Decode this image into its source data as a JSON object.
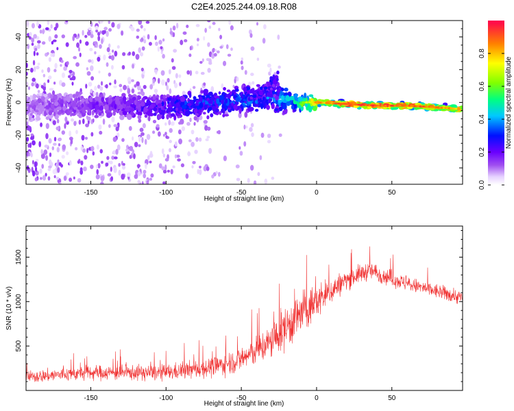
{
  "title": "C2E4.2025.244.09.18.R08",
  "chart_data": [
    {
      "type": "heatmap",
      "xlabel": "Height of straight line (km)",
      "ylabel": "Frequency (Hz)",
      "xlim": [
        -193,
        97
      ],
      "ylim": [
        -50,
        50
      ],
      "x_ticks": [
        -150,
        -100,
        -50,
        0,
        50
      ],
      "y_ticks": [
        -40,
        -20,
        0,
        20,
        40
      ],
      "colorbar": {
        "label": "Normalized spectral amplitude",
        "range": [
          0,
          1
        ],
        "ticks": [
          0.0,
          0.2,
          0.4,
          0.6,
          0.8
        ]
      },
      "ridge": [
        {
          "x": -190,
          "y": -3,
          "amp": 0.12
        },
        {
          "x": -170,
          "y": -2,
          "amp": 0.15
        },
        {
          "x": -150,
          "y": -2,
          "amp": 0.18
        },
        {
          "x": -130,
          "y": -2,
          "amp": 0.2
        },
        {
          "x": -110,
          "y": -3,
          "amp": 0.25
        },
        {
          "x": -95,
          "y": -2,
          "amp": 0.3
        },
        {
          "x": -80,
          "y": -1,
          "amp": 0.32
        },
        {
          "x": -60,
          "y": 0,
          "amp": 0.34
        },
        {
          "x": -45,
          "y": 2,
          "amp": 0.36
        },
        {
          "x": -30,
          "y": 3,
          "amp": 0.38
        },
        {
          "x": -20,
          "y": 2,
          "amp": 0.4
        },
        {
          "x": -10,
          "y": 0,
          "amp": 0.6
        },
        {
          "x": 0,
          "y": 0,
          "amp": 0.85
        },
        {
          "x": 20,
          "y": -1,
          "amp": 0.95
        },
        {
          "x": 40,
          "y": -2,
          "amp": 0.97
        },
        {
          "x": 60,
          "y": -2,
          "amp": 0.95
        },
        {
          "x": 80,
          "y": -3,
          "amp": 0.9
        },
        {
          "x": 95,
          "y": -4,
          "amp": 0.85
        }
      ]
    },
    {
      "type": "line",
      "xlabel": "Height of straight line (km)",
      "ylabel": "SNR (10 * v/v)",
      "xlim": [
        -193,
        97
      ],
      "ylim": [
        0,
        1850
      ],
      "x_ticks": [
        -150,
        -100,
        -50,
        0,
        50
      ],
      "y_ticks": [
        500,
        1000,
        1500
      ],
      "color": "#f03232",
      "envelope": [
        {
          "x": -193,
          "mean": 150,
          "spread": 120
        },
        {
          "x": -150,
          "mean": 200,
          "spread": 150
        },
        {
          "x": -100,
          "mean": 200,
          "spread": 160
        },
        {
          "x": -70,
          "mean": 260,
          "spread": 200
        },
        {
          "x": -50,
          "mean": 350,
          "spread": 250
        },
        {
          "x": -30,
          "mean": 550,
          "spread": 350
        },
        {
          "x": -15,
          "mean": 800,
          "spread": 500
        },
        {
          "x": 0,
          "mean": 1000,
          "spread": 350
        },
        {
          "x": 20,
          "mean": 1250,
          "spread": 200
        },
        {
          "x": 35,
          "mean": 1350,
          "spread": 180
        },
        {
          "x": 60,
          "mean": 1200,
          "spread": 150
        },
        {
          "x": 95,
          "mean": 1050,
          "spread": 150
        }
      ]
    }
  ]
}
